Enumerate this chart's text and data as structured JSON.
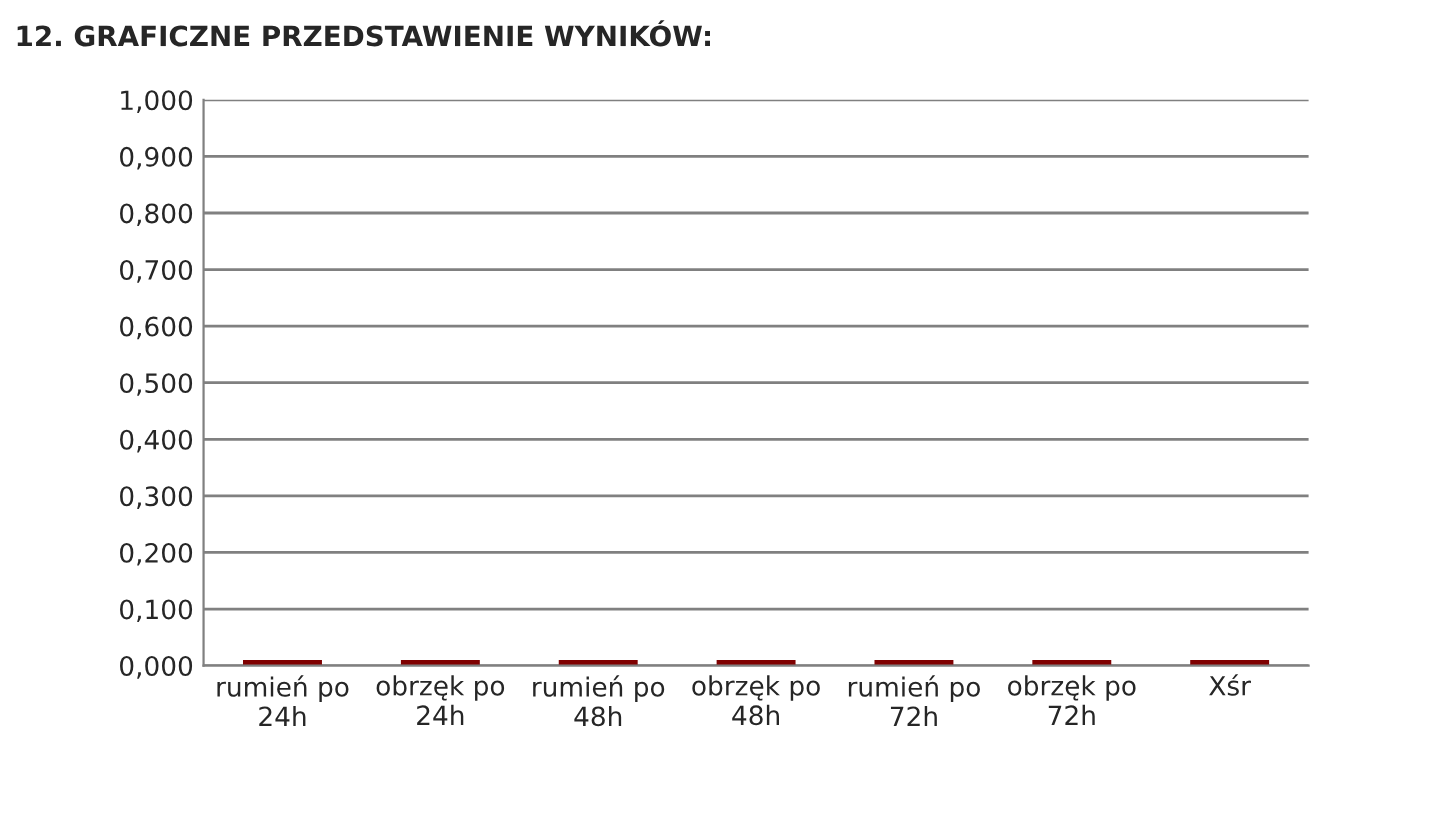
{
  "chart_data": {
    "type": "bar",
    "title": "12. GRAFICZNE PRZEDSTAWIENIE WYNIKÓW:",
    "categories": [
      "rumień po\n24h",
      "obrzęk po\n24h",
      "rumień po\n48h",
      "obrzęk po\n48h",
      "rumień po\n72h",
      "obrzęk po\n72h",
      "Xśr"
    ],
    "values": [
      0,
      0,
      0,
      0,
      0,
      0,
      0
    ],
    "color": "#7f0000",
    "ylim": [
      0,
      1
    ],
    "yticks": [
      {
        "value": 0,
        "label": "0,000"
      },
      {
        "value": 0.1,
        "label": "0,100"
      },
      {
        "value": 0.2,
        "label": "0,200"
      },
      {
        "value": 0.3,
        "label": "0,300"
      },
      {
        "value": 0.4,
        "label": "0,400"
      },
      {
        "value": 0.5,
        "label": "0,500"
      },
      {
        "value": 0.6,
        "label": "0,600"
      },
      {
        "value": 0.7,
        "label": "0,700"
      },
      {
        "value": 0.8,
        "label": "0,800"
      },
      {
        "value": 0.9,
        "label": "0,900"
      },
      {
        "value": 1,
        "label": "1,000"
      }
    ],
    "grid": "y"
  }
}
